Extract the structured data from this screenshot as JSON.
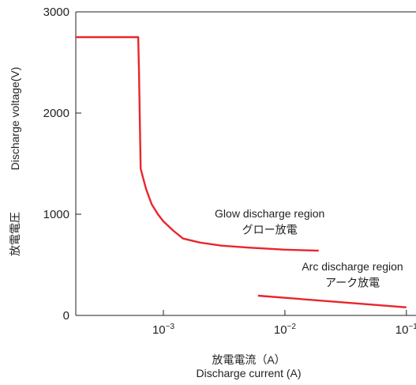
{
  "chart_data": {
    "type": "line",
    "x_scale": "log",
    "x_ticks": [
      {
        "value": 0.001,
        "mantissa": "10",
        "exponent": "−3"
      },
      {
        "value": 0.01,
        "mantissa": "10",
        "exponent": "−2"
      },
      {
        "value": 0.1,
        "mantissa": "10",
        "exponent": "−1"
      }
    ],
    "y_ticks": [
      {
        "value": 0,
        "label": "0"
      },
      {
        "value": 1000,
        "label": "1000"
      },
      {
        "value": 2000,
        "label": "2000"
      },
      {
        "value": 3000,
        "label": "3000"
      }
    ],
    "xlim": [
      0.00019,
      0.12
    ],
    "ylim": [
      0,
      3000
    ],
    "xlabel_jp": "放電電流（A）",
    "xlabel": "Discharge current (A)",
    "ylabel_jp": "放電電圧",
    "ylabel": "Discharge voltage(V)",
    "grid": false,
    "series": [
      {
        "color": "#e8262c",
        "points": [
          [
            0.00019,
            2750
          ],
          [
            0.00062,
            2750
          ],
          [
            0.00063,
            2400
          ],
          [
            0.00065,
            1450
          ],
          [
            0.00072,
            1250
          ],
          [
            0.0008,
            1100
          ],
          [
            0.0009,
            1000
          ],
          [
            0.001,
            930
          ],
          [
            0.0012,
            840
          ],
          [
            0.00145,
            760
          ],
          [
            0.002,
            720
          ],
          [
            0.003,
            690
          ],
          [
            0.005,
            670
          ],
          [
            0.01,
            650
          ],
          [
            0.019,
            640
          ]
        ]
      },
      {
        "color": "#e8262c",
        "points": [
          [
            0.006,
            195
          ],
          [
            0.1,
            80
          ]
        ]
      }
    ],
    "annotations": [
      {
        "text": "Glow discharge region",
        "x": 0.0075,
        "y": 970
      },
      {
        "text": "グロー放電",
        "x": 0.0075,
        "y": 810
      },
      {
        "text": "Arc discharge region",
        "x": 0.036,
        "y": 445
      },
      {
        "text": "アーク放電",
        "x": 0.036,
        "y": 285
      }
    ]
  }
}
